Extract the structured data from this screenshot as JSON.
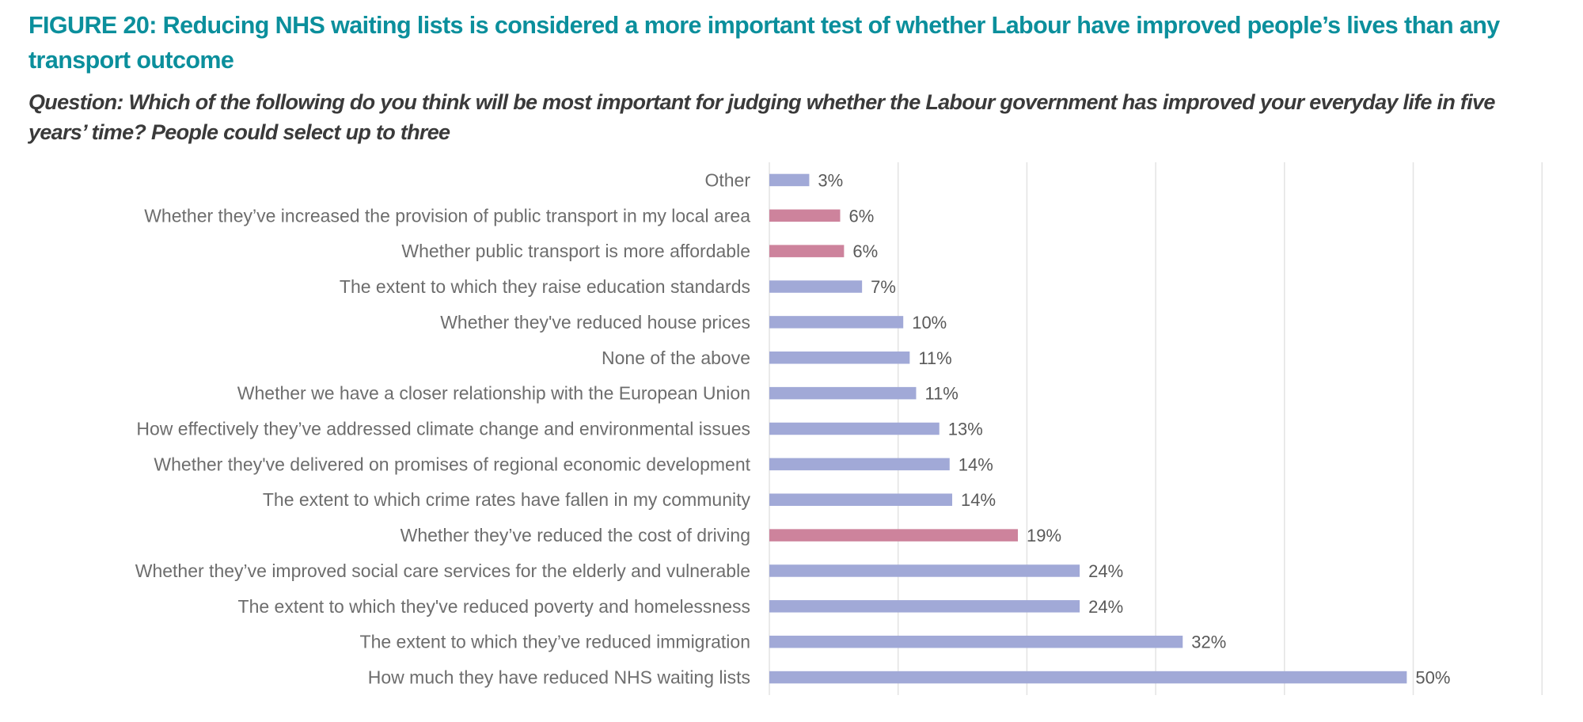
{
  "figure": {
    "title": "FIGURE 20: Reducing NHS waiting lists is considered a more important test of whether Labour have improved people’s lives than any transport outcome",
    "subtitle": "Question: Which of the following do you think will be most important for judging whether the Labour government has improved your everyday life in five years’ time? People could select up to three"
  },
  "colors": {
    "title": "#0b8f9c",
    "subtitle": "#3a3a3a",
    "category_label": "#6d6d6d",
    "value_label": "#595959",
    "bar_default": "#a1a9d7",
    "bar_transport": "#cd839c",
    "gridline": "#e3e3e3"
  },
  "chart_data": {
    "type": "bar",
    "orientation": "horizontal",
    "title": "FIGURE 20: Reducing NHS waiting lists is considered a more important test of whether Labour have improved people’s lives than any transport outcome",
    "subtitle": "Question: Which of the following do you think will be most important for judging whether the Labour government has improved your everyday life in five years’ time? People could select up to three",
    "xlabel": "",
    "ylabel": "",
    "xlim": [
      0,
      60
    ],
    "grid_step": 10,
    "grid": true,
    "legend": "none",
    "value_suffix": "%",
    "categories": [
      "Other",
      "Whether they’ve increased the provision of public transport in my local area",
      "Whether public transport is more affordable",
      "The extent to which they raise education standards",
      "Whether they've reduced house prices",
      "None of the above",
      "Whether we have a closer relationship with the European Union",
      "How effectively they’ve addressed climate change and environmental issues",
      "Whether they've delivered on promises of regional economic development",
      "The extent to which crime rates have fallen in my community",
      "Whether they’ve reduced the cost of driving",
      "Whether they’ve improved social care services for the elderly and vulnerable",
      "The extent to which they've reduced poverty and homelessness",
      "The extent to which they’ve reduced immigration",
      "How much they have reduced NHS waiting lists"
    ],
    "values": [
      3,
      6,
      6,
      7,
      10,
      11,
      11,
      13,
      14,
      14,
      19,
      24,
      24,
      32,
      50
    ],
    "bar_lengths_precise": [
      3.1,
      5.5,
      5.8,
      7.2,
      10.4,
      10.9,
      11.4,
      13.2,
      14.0,
      14.2,
      19.3,
      24.1,
      24.1,
      32.1,
      49.5
    ],
    "labels": [
      "3%",
      "6%",
      "6%",
      "7%",
      "10%",
      "11%",
      "11%",
      "13%",
      "14%",
      "14%",
      "19%",
      "24%",
      "24%",
      "32%",
      "50%"
    ],
    "highlight": [
      false,
      true,
      true,
      false,
      false,
      false,
      false,
      false,
      false,
      false,
      true,
      false,
      false,
      false,
      false
    ],
    "highlight_meaning": "transport outcome"
  }
}
